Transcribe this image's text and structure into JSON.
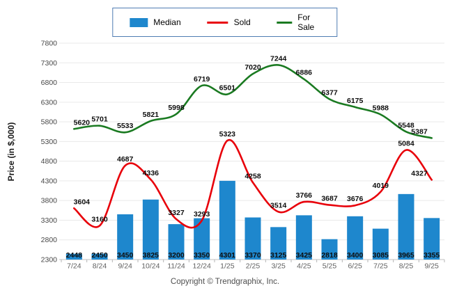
{
  "legend": {
    "items": [
      {
        "label": "Median",
        "swatch": "bar-swatch-icon"
      },
      {
        "label": "Sold",
        "swatch": "line-swatch-icon"
      },
      {
        "label": "For Sale",
        "swatch": "line-swatch-icon"
      }
    ]
  },
  "footer": {
    "copyright": "Copyright © Trendgraphix, Inc."
  },
  "chart_data": {
    "type": "bar+line",
    "title": "",
    "xlabel": "",
    "ylabel": "Price (in $,000)",
    "categories": [
      "7/24",
      "8/24",
      "9/24",
      "10/24",
      "11/24",
      "12/24",
      "1/25",
      "2/25",
      "3/25",
      "4/25",
      "5/25",
      "6/25",
      "7/25",
      "8/25",
      "9/25"
    ],
    "series": [
      {
        "name": "Median",
        "type": "bar",
        "color": "#1e87cd",
        "values": [
          2448,
          2450,
          3450,
          3825,
          3200,
          3350,
          4301,
          3370,
          3125,
          3425,
          2818,
          3400,
          3085,
          3965,
          3355
        ]
      },
      {
        "name": "Sold",
        "type": "line",
        "color": "#e8000a",
        "values": [
          3604,
          3160,
          4687,
          4336,
          3327,
          3293,
          5323,
          4258,
          3514,
          3766,
          3687,
          3676,
          4019,
          5084,
          4327
        ]
      },
      {
        "name": "For Sale",
        "type": "line",
        "color": "#1a7a21",
        "values": [
          5620,
          5701,
          5533,
          5821,
          5998,
          6719,
          6501,
          7020,
          7244,
          6886,
          6377,
          6175,
          5988,
          5548,
          5387
        ]
      }
    ],
    "ylim": [
      2300,
      7800
    ],
    "ytick_step": 500,
    "yticks": [
      2300,
      2800,
      3300,
      3800,
      4300,
      4800,
      5300,
      5800,
      6300,
      6800,
      7300,
      7800
    ],
    "grid": true,
    "legend_position": "top",
    "data_labels": true
  }
}
